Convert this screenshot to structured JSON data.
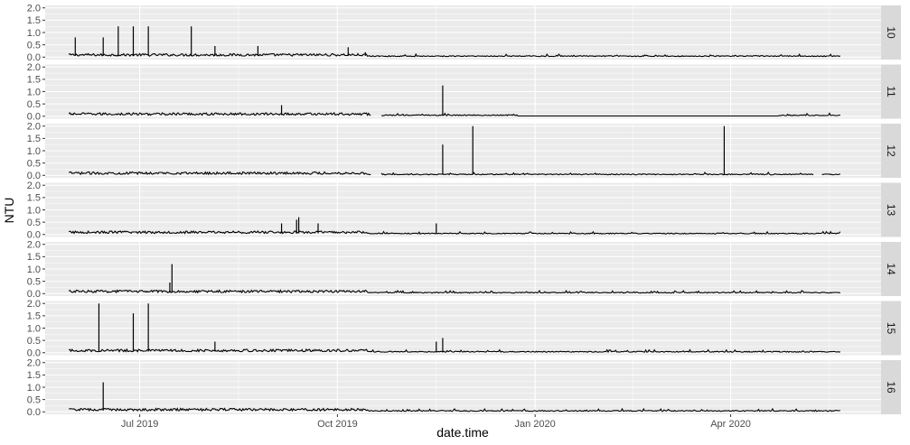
{
  "chart_data": {
    "type": "line",
    "facet_layout": "vertical facets, strip labels on right",
    "xlabel": "date.time",
    "ylabel": "NTU",
    "x_range": [
      "2019-05-18",
      "2020-06-10"
    ],
    "ylim": [
      -0.1,
      2.1
    ],
    "x_ticks": [
      "2019-07-01",
      "2019-10-01",
      "2020-01-01",
      "2020-04-01"
    ],
    "x_tick_labels": [
      "Jul 2019",
      "Oct 2019",
      "Jan 2020",
      "Apr 2020"
    ],
    "y_ticks": [
      0.0,
      0.5,
      1.0,
      1.5,
      2.0
    ],
    "y_tick_labels": [
      "0.0",
      "0.5",
      "1.0",
      "1.5",
      "2.0"
    ],
    "grid": true,
    "colors": {
      "panel_background": "#ebebeb",
      "grid": "#ffffff",
      "strip_background": "#d9d9d9",
      "line": "#000000"
    },
    "series": [
      {
        "name": "10",
        "start": "2019-05-29",
        "end": "2020-05-22",
        "gaps": [],
        "flat": [],
        "spikes": [
          [
            "2019-06-01",
            0.8
          ],
          [
            "2019-06-14",
            0.8
          ],
          [
            "2019-06-21",
            1.25
          ],
          [
            "2019-06-28",
            1.25
          ],
          [
            "2019-07-05",
            1.25
          ],
          [
            "2019-07-25",
            1.25
          ],
          [
            "2019-08-05",
            0.45
          ],
          [
            "2019-08-25",
            0.45
          ],
          [
            "2019-10-06",
            0.4
          ],
          [
            "2019-10-14",
            0.2
          ]
        ]
      },
      {
        "name": "11",
        "start": "2019-05-29",
        "end": "2020-05-22",
        "gaps": [
          [
            "2019-10-17",
            "2019-10-21"
          ]
        ],
        "flat": [
          [
            "2019-12-24",
            "2020-04-23"
          ]
        ],
        "spikes": [
          [
            "2019-09-05",
            0.45
          ],
          [
            "2019-11-19",
            1.25
          ]
        ]
      },
      {
        "name": "12",
        "start": "2019-05-29",
        "end": "2020-05-22",
        "gaps": [
          [
            "2019-10-17",
            "2019-10-21"
          ],
          [
            "2020-05-10",
            "2020-05-13"
          ]
        ],
        "flat": [],
        "spikes": [
          [
            "2019-11-19",
            1.25
          ],
          [
            "2019-12-03",
            2.0
          ],
          [
            "2020-03-29",
            2.0
          ]
        ]
      },
      {
        "name": "13",
        "start": "2019-05-29",
        "end": "2020-05-22",
        "gaps": [],
        "flat": [],
        "spikes": [
          [
            "2019-09-05",
            0.45
          ],
          [
            "2019-09-12",
            0.6
          ],
          [
            "2019-09-13",
            0.7
          ],
          [
            "2019-09-22",
            0.45
          ],
          [
            "2019-11-16",
            0.45
          ]
        ]
      },
      {
        "name": "14",
        "start": "2019-05-29",
        "end": "2020-05-22",
        "gaps": [],
        "flat": [],
        "spikes": [
          [
            "2019-07-15",
            0.45
          ],
          [
            "2019-07-16",
            1.2
          ]
        ]
      },
      {
        "name": "15",
        "start": "2019-05-29",
        "end": "2020-05-22",
        "gaps": [],
        "flat": [],
        "spikes": [
          [
            "2019-06-12",
            2.0
          ],
          [
            "2019-06-28",
            1.6
          ],
          [
            "2019-07-05",
            2.0
          ],
          [
            "2019-08-05",
            0.45
          ],
          [
            "2019-11-16",
            0.45
          ],
          [
            "2019-11-19",
            0.6
          ]
        ]
      },
      {
        "name": "16",
        "start": "2019-05-29",
        "end": "2020-05-22",
        "gaps": [],
        "flat": [],
        "spikes": [
          [
            "2019-06-14",
            1.2
          ]
        ]
      }
    ]
  }
}
